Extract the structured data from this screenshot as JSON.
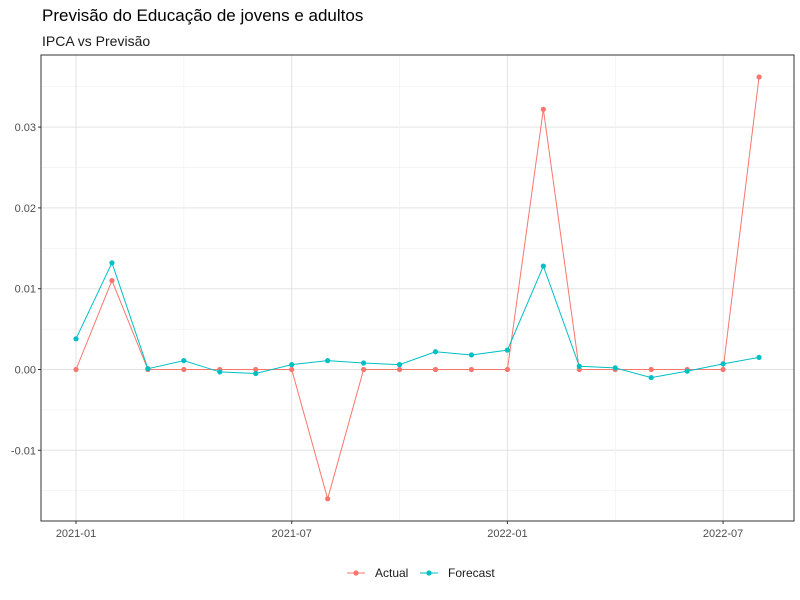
{
  "chart_data": {
    "type": "line",
    "title": "Previsão do Educação de jovens e adultos",
    "subtitle": "IPCA vs Previsão",
    "xlabel": "",
    "ylabel": "",
    "x": [
      "2021-01",
      "2021-02",
      "2021-03",
      "2021-04",
      "2021-05",
      "2021-06",
      "2021-07",
      "2021-08",
      "2021-09",
      "2021-10",
      "2021-11",
      "2021-12",
      "2022-01",
      "2022-02",
      "2022-03",
      "2022-04",
      "2022-05",
      "2022-06",
      "2022-07",
      "2022-08"
    ],
    "x_ticks": [
      "2021-01",
      "2021-07",
      "2022-01",
      "2022-07"
    ],
    "y_ticks": [
      -0.01,
      0.0,
      0.01,
      0.02,
      0.03
    ],
    "y_tick_labels": [
      "-0.01",
      "0.00",
      "0.01",
      "0.02",
      "0.03"
    ],
    "ylim": [
      -0.0185,
      0.0385
    ],
    "grid": true,
    "legend_position": "bottom",
    "series": [
      {
        "name": "Actual",
        "color": "#F8766D",
        "values": [
          0.0,
          0.011,
          0.0,
          0.0,
          0.0,
          0.0,
          0.0,
          -0.016,
          0.0,
          0.0,
          0.0,
          0.0,
          0.0,
          0.0322,
          0.0,
          0.0,
          0.0,
          0.0,
          0.0,
          0.0362
        ]
      },
      {
        "name": "Forecast",
        "color": "#00BFC4",
        "values": [
          0.0038,
          0.0132,
          0.0001,
          0.0011,
          -0.0003,
          -0.0005,
          0.0006,
          0.0011,
          0.0008,
          0.0006,
          0.0022,
          0.0018,
          0.0024,
          0.0128,
          0.0004,
          0.0002,
          -0.001,
          -0.0002,
          0.0007,
          0.0015
        ]
      }
    ]
  }
}
